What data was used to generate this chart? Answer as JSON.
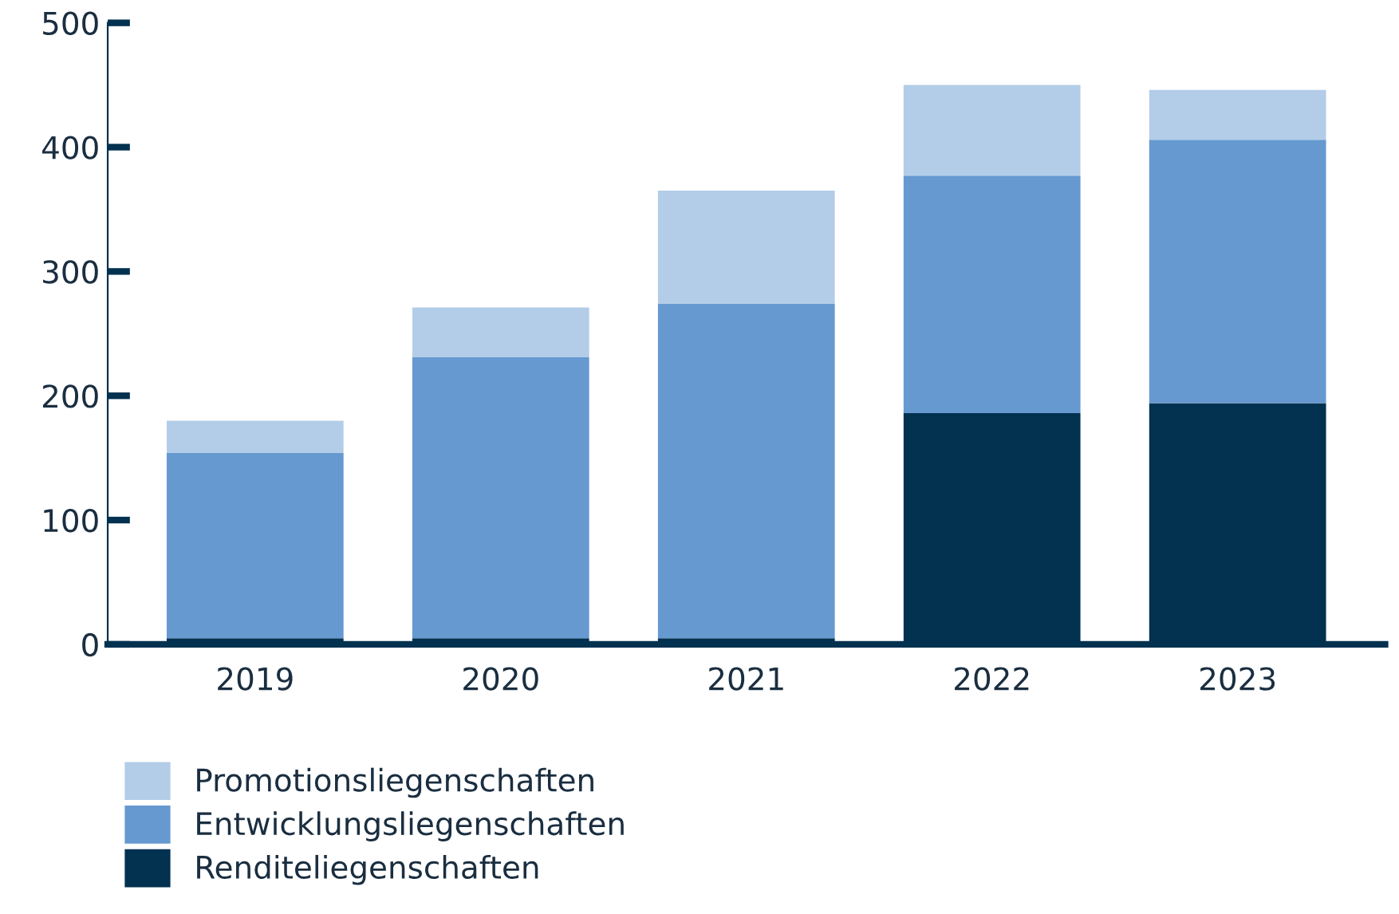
{
  "chart_data": {
    "type": "bar",
    "stacked": true,
    "categories": [
      "2019",
      "2020",
      "2021",
      "2022",
      "2023"
    ],
    "series": [
      {
        "name": "Renditeliegenschaften",
        "color": "#033150",
        "values": [
          5,
          5,
          5,
          186,
          194
        ]
      },
      {
        "name": "Entwicklungsliegenschaften",
        "color": "#6699d0",
        "values": [
          149,
          226,
          269,
          191,
          212
        ]
      },
      {
        "name": "Promotionsliegenschaften",
        "color": "#b3cde8",
        "values": [
          26,
          40,
          91,
          73,
          40
        ]
      }
    ],
    "ylim": [
      0,
      500
    ],
    "yticks": [
      0,
      100,
      200,
      300,
      400,
      500
    ],
    "grid": false,
    "legend": "bottom left"
  }
}
